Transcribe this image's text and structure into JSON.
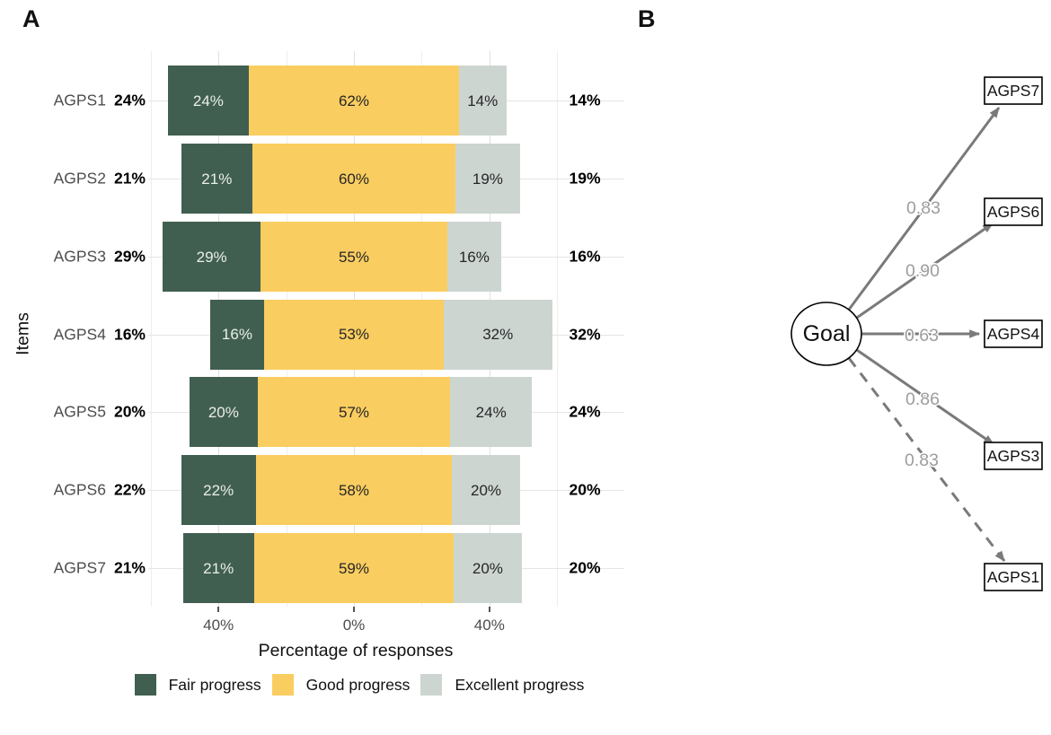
{
  "figure": {
    "panel_a_label": "A",
    "panel_b_label": "B"
  },
  "chart_data": {
    "type": "bar",
    "subtype": "diverging_stacked_likert",
    "title": "",
    "xlabel": "Percentage of responses",
    "ylabel": "Items",
    "categories": [
      "AGPS1",
      "AGPS2",
      "AGPS3",
      "AGPS4",
      "AGPS5",
      "AGPS6",
      "AGPS7"
    ],
    "series": [
      {
        "name": "Fair progress",
        "color": "#415f50",
        "values": [
          24,
          21,
          29,
          16,
          20,
          22,
          21
        ]
      },
      {
        "name": "Good progress",
        "color": "#facd60",
        "values": [
          62,
          60,
          55,
          53,
          57,
          58,
          59
        ]
      },
      {
        "name": "Excellent progress",
        "color": "#cdd5d1",
        "values": [
          14,
          19,
          16,
          32,
          24,
          20,
          20
        ]
      }
    ],
    "left_axis_totals": [
      "24%",
      "21%",
      "29%",
      "16%",
      "20%",
      "22%",
      "21%"
    ],
    "right_totals": [
      "14%",
      "19%",
      "16%",
      "32%",
      "24%",
      "20%",
      "20%"
    ],
    "bar_label_suffix": "%",
    "x_ticks": [
      {
        "value": -40,
        "label": "40%"
      },
      {
        "value": 0,
        "label": "0%"
      },
      {
        "value": 40,
        "label": "40%"
      }
    ],
    "x_range": [
      -61,
      81
    ],
    "center_category": "Good progress",
    "grid": true,
    "legend_position": "bottom",
    "colors": {
      "bar_text_on_dark": "#e9efe9",
      "bar_text_on_light": "#262626",
      "axis_text": "#4d4d4d",
      "totals_text": "#000000"
    }
  },
  "path_diagram": {
    "latent_label": "Goal",
    "edges": [
      {
        "target": "AGPS7",
        "loading": "0.83",
        "line": "solid"
      },
      {
        "target": "AGPS6",
        "loading": "0.90",
        "line": "solid"
      },
      {
        "target": "AGPS4",
        "loading": "0.63",
        "line": "solid"
      },
      {
        "target": "AGPS3",
        "loading": "0.86",
        "line": "solid"
      },
      {
        "target": "AGPS1",
        "loading": "0.83",
        "line": "dashed"
      }
    ],
    "colors": {
      "edge": "#7a7a7a",
      "edge_label": "#9d9d9d",
      "node_border": "#000000",
      "node_fill": "#ffffff"
    }
  }
}
